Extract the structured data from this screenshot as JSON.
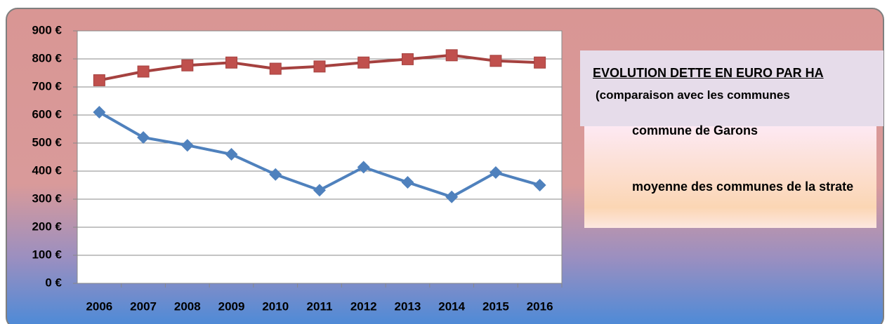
{
  "chart_data": {
    "type": "line",
    "title": "EVOLUTION DETTE EN EURO PAR HA",
    "subtitle": "(comparaison avec les communes",
    "categories": [
      "2006",
      "2007",
      "2008",
      "2009",
      "2010",
      "2011",
      "2012",
      "2013",
      "2014",
      "2015",
      "2016"
    ],
    "series": [
      {
        "name": "commune de Garons",
        "color": "#4f81bd",
        "marker": "diamond",
        "values": [
          610,
          520,
          492,
          460,
          388,
          332,
          414,
          360,
          308,
          395,
          350
        ]
      },
      {
        "name": "moyenne des communes de la strate",
        "color": "#a5413f",
        "marker": "square",
        "values": [
          724,
          755,
          777,
          787,
          765,
          773,
          787,
          799,
          813,
          793,
          787
        ]
      }
    ],
    "ylim": [
      0,
      900
    ],
    "yticks": [
      {
        "value": 0,
        "label": "0 €"
      },
      {
        "value": 100,
        "label": "100 €"
      },
      {
        "value": 200,
        "label": "200 €"
      },
      {
        "value": 300,
        "label": "300 €"
      },
      {
        "value": 400,
        "label": "400 €"
      },
      {
        "value": 500,
        "label": "500 €"
      },
      {
        "value": 600,
        "label": "600 €"
      },
      {
        "value": 700,
        "label": "700 €"
      },
      {
        "value": 800,
        "label": "800 €"
      },
      {
        "value": 900,
        "label": "900 €"
      }
    ],
    "grid": true
  }
}
